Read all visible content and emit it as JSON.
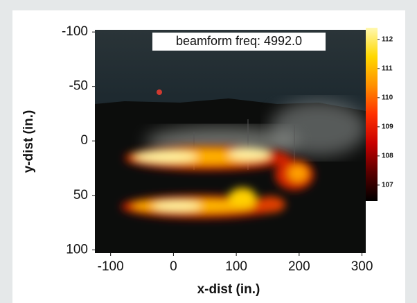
{
  "chart_data": {
    "type": "heatmap",
    "annotation": "beamform freq: 4992.0",
    "xlabel": "x-dist (in.)",
    "ylabel": "y-dist (in.)",
    "xlim": [
      -125,
      306
    ],
    "xticks": [
      -100,
      0,
      100,
      200,
      300
    ],
    "ylim": [
      -102,
      103
    ],
    "yticks": [
      -100,
      -50,
      0,
      50,
      100
    ],
    "y_inverted": true,
    "colorbar": {
      "lim": [
        106.45,
        112.4
      ],
      "ticks": [
        107,
        108,
        109,
        110,
        111,
        112
      ],
      "colormap": [
        "#000000",
        "#5a0000",
        "#c80000",
        "#ff3000",
        "#ff9000",
        "#ffd800",
        "#fff8b0"
      ]
    }
  }
}
